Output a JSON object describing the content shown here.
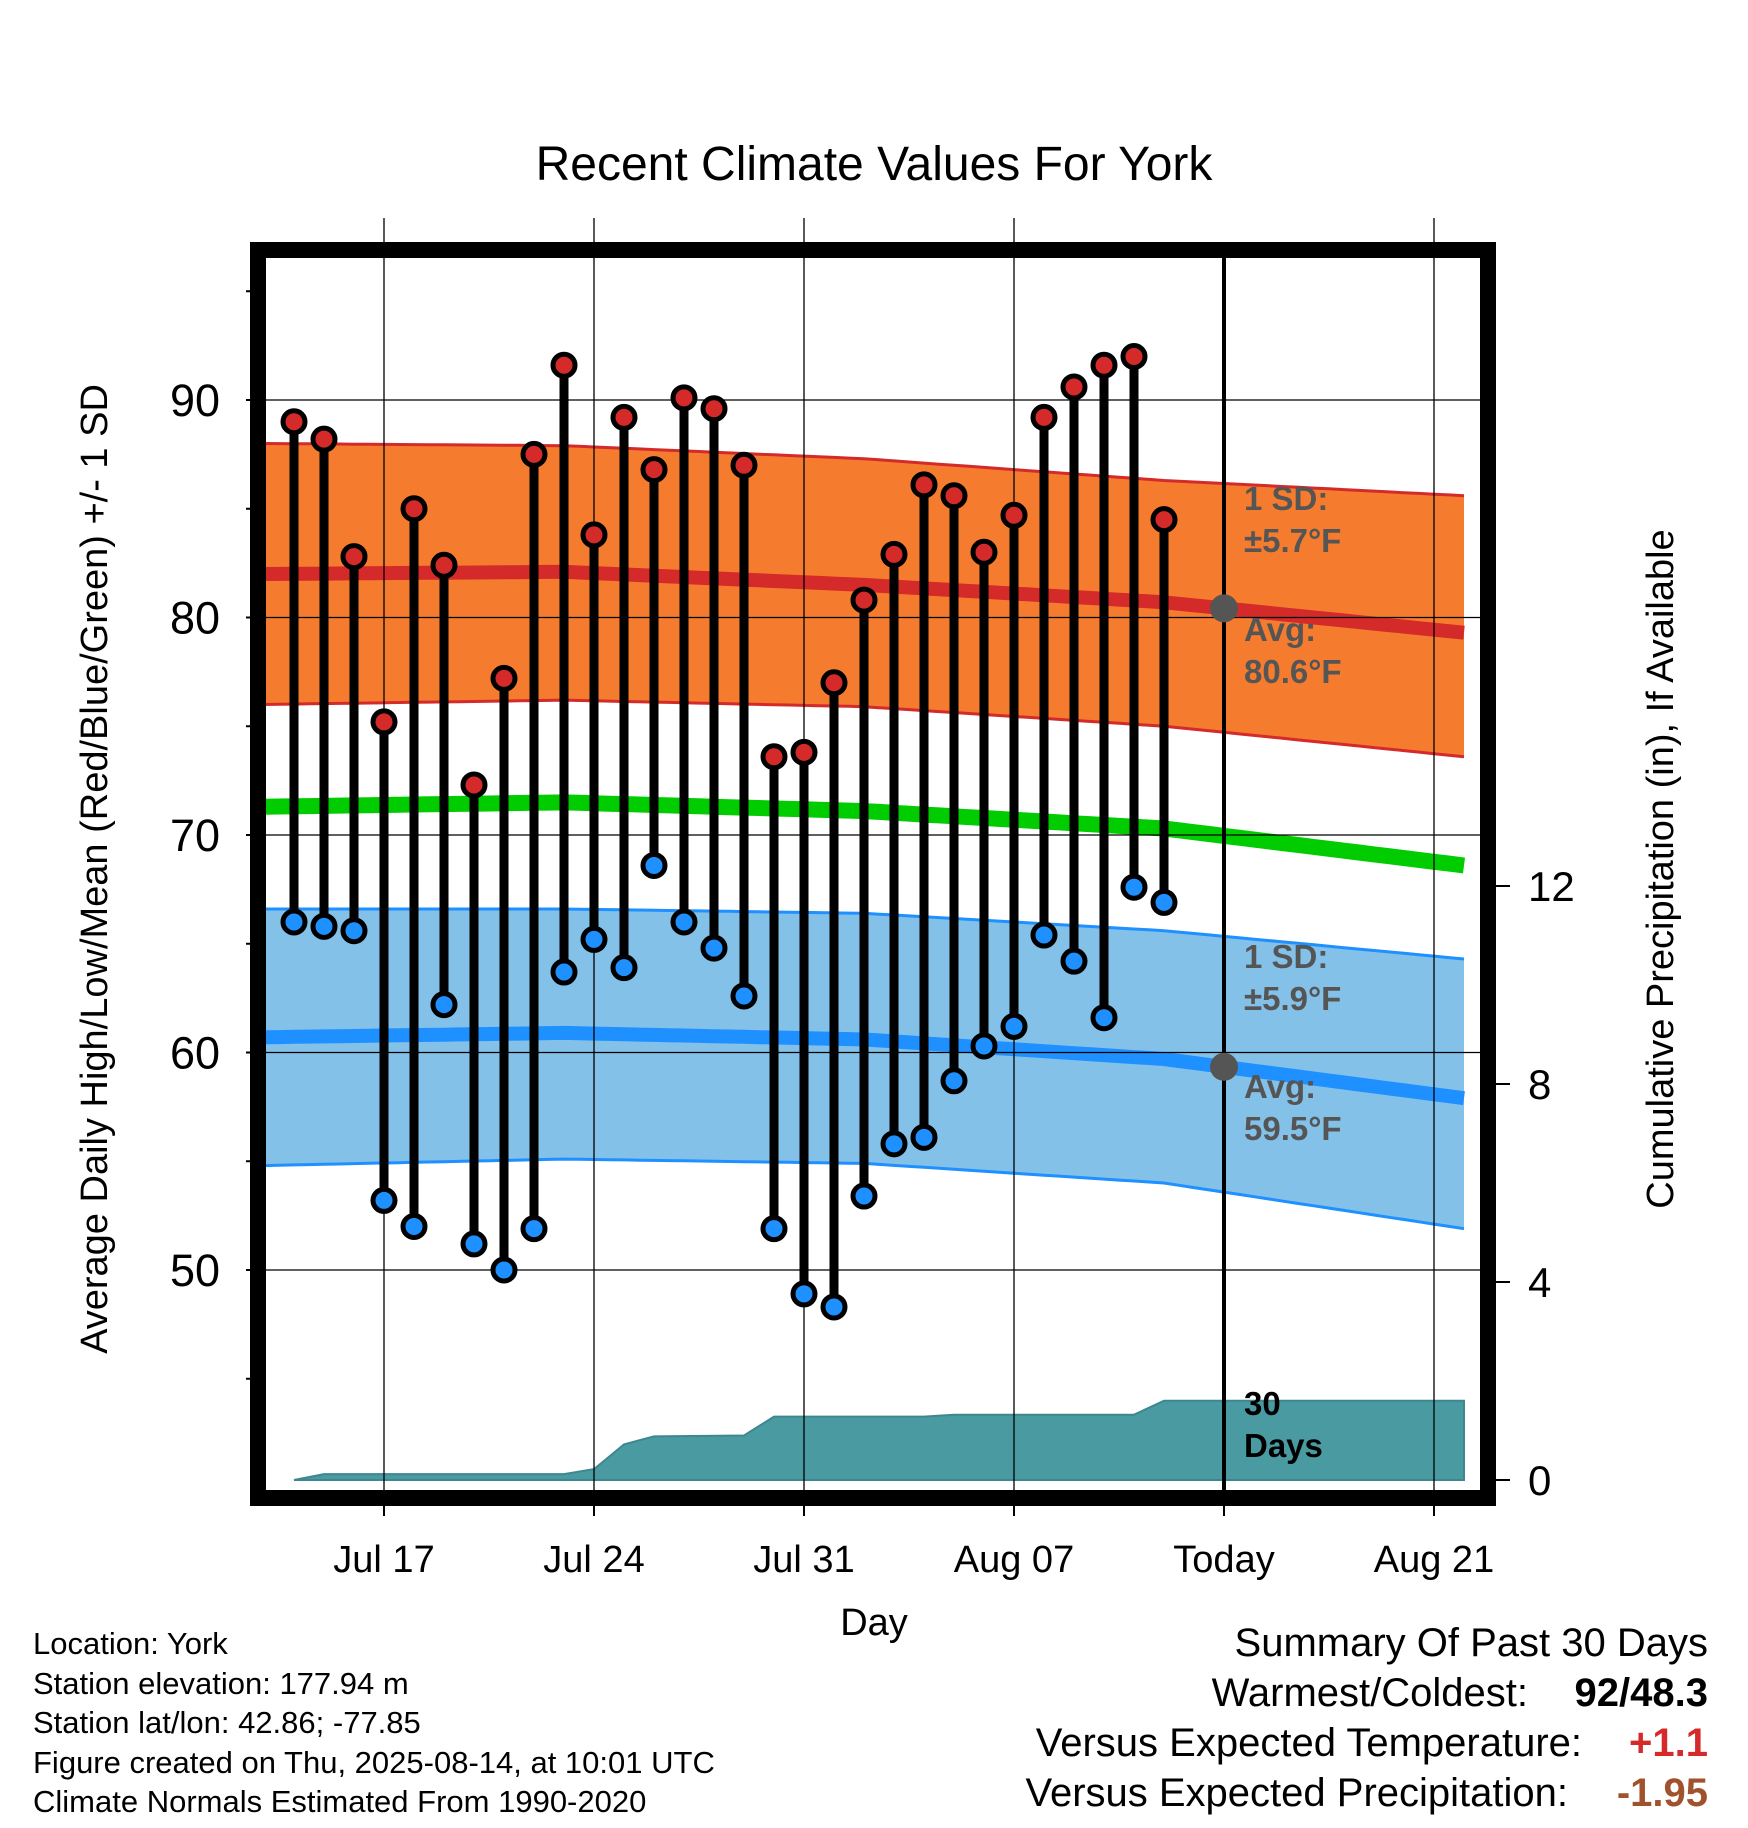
{
  "chart_data": {
    "type": "line",
    "title": "Recent Climate Values For York",
    "xlabel": "Day",
    "ylabel": "Average Daily High/Low/Mean (Red/Blue/Green) +/- 1 SD",
    "ylabel_right": "Cumulative Precipitation (in), If Available",
    "x_range_days": [
      "Jul 13",
      "Aug 23"
    ],
    "ylim": [
      41.5,
      97.5
    ],
    "y_ticks": [
      50,
      60,
      70,
      80,
      90
    ],
    "y2lim": [
      0,
      16
    ],
    "y2_ticks": [
      0,
      4,
      8,
      12
    ],
    "x_ticks": [
      {
        "label": "Jul 17",
        "day": 4
      },
      {
        "label": "Jul 24",
        "day": 11
      },
      {
        "label": "Jul 31",
        "day": 18
      },
      {
        "label": "Aug 07",
        "day": 25
      },
      {
        "label": "Today",
        "day": 32
      },
      {
        "label": "Aug 21",
        "day": 39
      }
    ],
    "daily_high": [
      89.0,
      88.2,
      82.8,
      75.2,
      85.0,
      82.4,
      72.3,
      77.2,
      87.5,
      91.6,
      83.8,
      89.2,
      86.8,
      90.1,
      89.6,
      87.0,
      73.6,
      73.8,
      77.0,
      80.8,
      82.9,
      86.1,
      85.6,
      83.0,
      84.7,
      89.2,
      90.6,
      91.6,
      92.0,
      84.5
    ],
    "daily_low": [
      66.0,
      65.8,
      65.6,
      53.2,
      52.0,
      62.2,
      51.2,
      50.0,
      51.9,
      63.7,
      65.2,
      63.9,
      68.6,
      66.0,
      64.8,
      62.6,
      51.9,
      48.9,
      48.3,
      53.4,
      55.8,
      56.1,
      58.7,
      60.3,
      61.2,
      65.4,
      64.2,
      61.6,
      67.6,
      66.9
    ],
    "normal_high_avg": {
      "x": [
        0,
        10,
        20,
        30,
        40
      ],
      "values": [
        82.0,
        82.1,
        81.5,
        80.7,
        79.3
      ]
    },
    "normal_high_sd_upper": {
      "x": [
        0,
        10,
        20,
        30,
        40
      ],
      "values": [
        88.0,
        87.9,
        87.3,
        86.3,
        85.6
      ]
    },
    "normal_high_sd_lower": {
      "x": [
        0,
        10,
        20,
        30,
        40
      ],
      "values": [
        76.0,
        76.2,
        75.9,
        75.0,
        73.6
      ]
    },
    "normal_mean": {
      "x": [
        0,
        10,
        20,
        30,
        40
      ],
      "values": [
        71.3,
        71.5,
        71.1,
        70.3,
        68.6
      ]
    },
    "normal_low_avg": {
      "x": [
        0,
        10,
        20,
        30,
        40
      ],
      "values": [
        60.7,
        60.9,
        60.6,
        59.7,
        57.9
      ]
    },
    "normal_low_sd_upper": {
      "x": [
        0,
        10,
        20,
        30,
        40
      ],
      "values": [
        66.6,
        66.6,
        66.4,
        65.6,
        64.3
      ]
    },
    "normal_low_sd_lower": {
      "x": [
        0,
        10,
        20,
        30,
        40
      ],
      "values": [
        54.8,
        55.1,
        54.9,
        54.0,
        51.9
      ]
    },
    "cumulative_precip": {
      "x": [
        1,
        2,
        10,
        11,
        12,
        13,
        16,
        17,
        22,
        23,
        29,
        30,
        40
      ],
      "values": [
        0.0,
        0.12,
        0.12,
        0.22,
        0.72,
        0.88,
        0.9,
        1.28,
        1.28,
        1.32,
        1.32,
        1.6,
        1.6
      ]
    },
    "annotations": {
      "high_sd": [
        "1 SD:",
        "±5.7°F"
      ],
      "high_avg": [
        "Avg:",
        "80.6°F"
      ],
      "low_sd": [
        "1 SD:",
        "±5.9°F"
      ],
      "low_avg": [
        "Avg:",
        "59.5°F"
      ],
      "precip_period": [
        "30",
        "Days"
      ]
    },
    "today_day": 32,
    "colors": {
      "high_band": "#f57c2e",
      "high_line": "#d42a2a",
      "mean_line": "#00cc00",
      "low_band": "#83c1e8",
      "low_line": "#1e90ff",
      "precip_fill": "#4a9aa2",
      "high_dot": "#d42a2a",
      "low_dot": "#1e90ff",
      "annotation_text": "#555555"
    }
  },
  "footer": {
    "location": "Location: York",
    "elevation": "Station elevation: 177.94 m",
    "latlon": "Station lat/lon: 42.86; -77.85",
    "created": "Figure created on Thu, 2025-08-14, at 10:01 UTC",
    "normals": "Climate Normals Estimated From 1990-2020"
  },
  "summary": {
    "title": "Summary Of Past 30 Days",
    "warmest_label": "Warmest/Coldest:",
    "warmest_value": "92/48.3",
    "temp_label": "Versus Expected Temperature:",
    "temp_value": "+1.1",
    "precip_label": "Versus Expected Precipitation:",
    "precip_value": "-1.95"
  }
}
